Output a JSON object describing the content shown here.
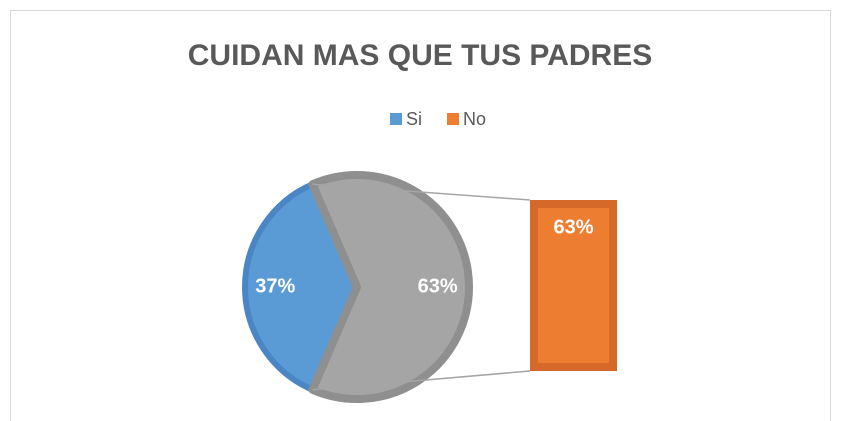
{
  "chart_data": {
    "type": "bar-of-pie",
    "title": "CUIDAN MAS QUE TUS PADRES",
    "categories": [
      "Si",
      "No"
    ],
    "values": [
      37,
      63
    ],
    "value_labels": [
      "37%",
      "63%"
    ],
    "colors": [
      "#5b9bd5",
      "#ed7d31"
    ],
    "other_color": "#a5a5a5",
    "legend": "top"
  }
}
